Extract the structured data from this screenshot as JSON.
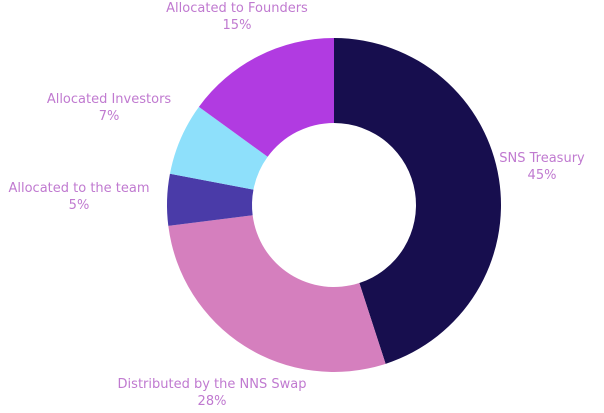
{
  "chart_data": {
    "type": "pie",
    "variant": "donut",
    "title": "",
    "slices": [
      {
        "label": "SNS Treasury",
        "pct_label": "45%",
        "value": 45,
        "color": "#170e4e"
      },
      {
        "label": "Distributed by the NNS Swap",
        "pct_label": "28%",
        "value": 28,
        "color": "#d57fbe"
      },
      {
        "label": "Allocated to the team",
        "pct_label": "5%",
        "value": 5,
        "color": "#4a3ba8"
      },
      {
        "label": "Allocated Investors",
        "pct_label": "7%",
        "value": 7,
        "color": "#8ee0fb"
      },
      {
        "label": "Allocated to Founders",
        "pct_label": "15%",
        "value": 15,
        "color": "#b13be1"
      }
    ],
    "label_color": "#c07ad0"
  }
}
